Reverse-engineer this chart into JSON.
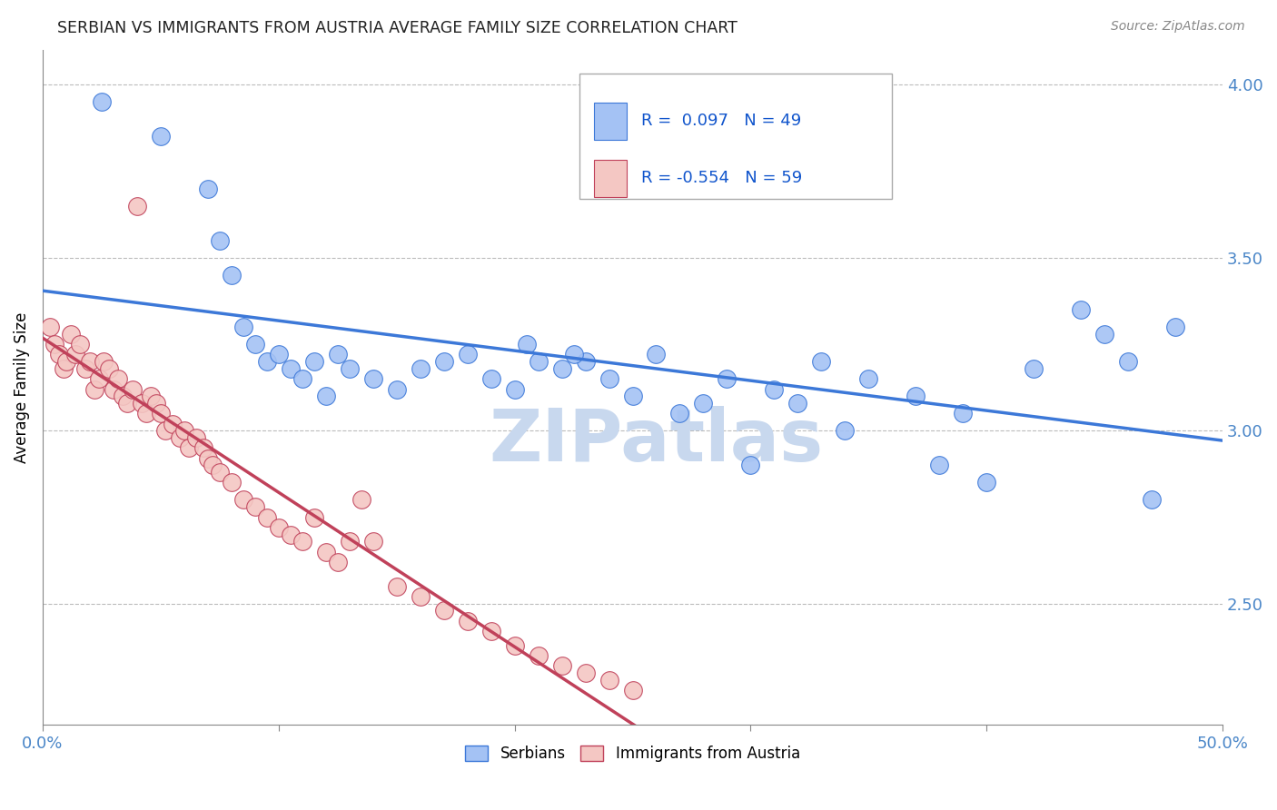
{
  "title": "SERBIAN VS IMMIGRANTS FROM AUSTRIA AVERAGE FAMILY SIZE CORRELATION CHART",
  "source": "Source: ZipAtlas.com",
  "ylabel": "Average Family Size",
  "xlim": [
    0.0,
    50.0
  ],
  "ylim": [
    2.15,
    4.1
  ],
  "yticks": [
    2.5,
    3.0,
    3.5,
    4.0
  ],
  "xticks": [
    0.0,
    10.0,
    20.0,
    30.0,
    40.0,
    50.0
  ],
  "blue_R": 0.097,
  "blue_N": 49,
  "pink_R": -0.554,
  "pink_N": 59,
  "blue_color": "#a4c2f4",
  "pink_color": "#f4c7c3",
  "blue_line_color": "#3c78d8",
  "pink_line_color": "#c0415a",
  "title_color": "#212121",
  "axis_color": "#4a86c8",
  "legend_R_color": "#1155cc",
  "watermark": "ZIPatlas",
  "watermark_color": "#c8d8ee",
  "blue_x": [
    2.5,
    5.0,
    7.0,
    7.5,
    8.0,
    8.5,
    9.0,
    9.5,
    10.0,
    10.5,
    11.0,
    11.5,
    12.0,
    12.5,
    13.0,
    14.0,
    15.0,
    16.0,
    17.0,
    18.0,
    19.0,
    20.0,
    20.5,
    21.0,
    22.0,
    23.0,
    24.0,
    25.0,
    26.0,
    27.0,
    28.0,
    29.0,
    30.0,
    31.0,
    32.0,
    33.0,
    34.0,
    35.0,
    37.0,
    38.0,
    39.0,
    40.0,
    42.0,
    44.0,
    45.0,
    46.0,
    47.0,
    48.0,
    22.5
  ],
  "blue_y": [
    3.95,
    3.85,
    3.7,
    3.55,
    3.45,
    3.3,
    3.25,
    3.2,
    3.22,
    3.18,
    3.15,
    3.2,
    3.1,
    3.22,
    3.18,
    3.15,
    3.12,
    3.18,
    3.2,
    3.22,
    3.15,
    3.12,
    3.25,
    3.2,
    3.18,
    3.2,
    3.15,
    3.1,
    3.22,
    3.05,
    3.08,
    3.15,
    2.9,
    3.12,
    3.08,
    3.2,
    3.0,
    3.15,
    3.1,
    2.9,
    3.05,
    2.85,
    3.18,
    3.35,
    3.28,
    3.2,
    2.8,
    3.3,
    3.22
  ],
  "pink_x": [
    0.3,
    0.5,
    0.7,
    0.9,
    1.0,
    1.2,
    1.4,
    1.6,
    1.8,
    2.0,
    2.2,
    2.4,
    2.6,
    2.8,
    3.0,
    3.2,
    3.4,
    3.6,
    3.8,
    4.0,
    4.2,
    4.4,
    4.6,
    4.8,
    5.0,
    5.2,
    5.5,
    5.8,
    6.0,
    6.2,
    6.5,
    6.8,
    7.0,
    7.2,
    7.5,
    8.0,
    8.5,
    9.0,
    9.5,
    10.0,
    10.5,
    11.0,
    11.5,
    12.0,
    12.5,
    13.0,
    13.5,
    14.0,
    15.0,
    16.0,
    17.0,
    18.0,
    19.0,
    20.0,
    21.0,
    22.0,
    23.0,
    24.0,
    25.0
  ],
  "pink_y": [
    3.3,
    3.25,
    3.22,
    3.18,
    3.2,
    3.28,
    3.22,
    3.25,
    3.18,
    3.2,
    3.12,
    3.15,
    3.2,
    3.18,
    3.12,
    3.15,
    3.1,
    3.08,
    3.12,
    3.65,
    3.08,
    3.05,
    3.1,
    3.08,
    3.05,
    3.0,
    3.02,
    2.98,
    3.0,
    2.95,
    2.98,
    2.95,
    2.92,
    2.9,
    2.88,
    2.85,
    2.8,
    2.78,
    2.75,
    2.72,
    2.7,
    2.68,
    2.75,
    2.65,
    2.62,
    2.68,
    2.8,
    2.68,
    2.55,
    2.52,
    2.48,
    2.45,
    2.42,
    2.38,
    2.35,
    2.32,
    2.3,
    2.28,
    2.25
  ]
}
